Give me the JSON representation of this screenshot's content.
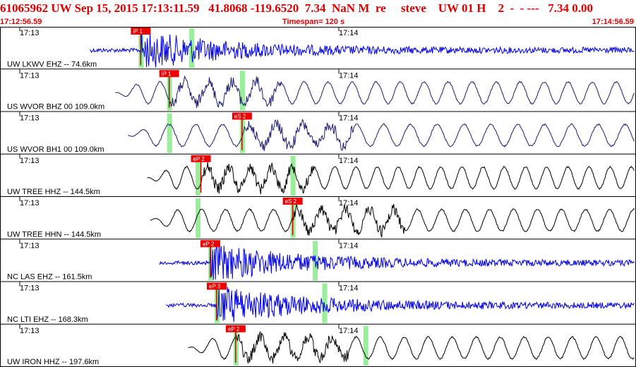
{
  "header": {
    "event_line": "61065962 UW Sep 15, 2015 17:13:11.59   41.8068 -119.6520  7.34  NaN M  re     steve    UW 01 H    2  -  - ---   7.34 0.00",
    "start_time": "17:12:56.59",
    "timespan": "Timespan= 120 s",
    "end_time": "17:14:56.59"
  },
  "minute_labels": [
    "17:13",
    "17:14"
  ],
  "colors": {
    "header_text": "#e00000",
    "blue_trace": "#0000ee",
    "navy_trace": "#1c1c6e",
    "black_trace": "#000000",
    "pick_box": "#ee0000",
    "pick_line": "#cc0000",
    "window_bar": "#99ee99"
  },
  "traces": [
    {
      "label": "UW LKWV EHZ -- 74.6km",
      "color": "#0000ee",
      "style": "noise",
      "pick": "iP 1",
      "start": 0.14,
      "pick_at": 0.22,
      "bars": [
        0.22,
        0.3
      ]
    },
    {
      "label": "US WVOR BHZ 00 109.0km",
      "color": "#1c1c6e",
      "style": "wave",
      "pick": "iP 1",
      "start": 0.18,
      "pick_at": 0.265,
      "bars": [
        0.265,
        0.38
      ]
    },
    {
      "label": "US WVOR BH1 00 109.0km",
      "color": "#1c1c6e",
      "style": "wave",
      "pick": "eS 2",
      "start": 0.2,
      "pick_at": 0.38,
      "bars": [
        0.265,
        0.38
      ]
    },
    {
      "label": "UW TREE HHZ -- 144.5km",
      "color": "#000000",
      "style": "wave",
      "pick": "eP 2",
      "start": 0.23,
      "pick_at": 0.315,
      "bars": [
        0.31,
        0.46
      ]
    },
    {
      "label": "UW TREE HHN -- 144.5km",
      "color": "#000000",
      "style": "wave",
      "pick": "eS 2",
      "start": 0.235,
      "pick_at": 0.46,
      "bars": [
        0.31,
        0.46
      ]
    },
    {
      "label": "NC LAS EHZ -- 161.5km",
      "color": "#0000ee",
      "style": "noise",
      "pick": "eP 2",
      "start": 0.25,
      "pick_at": 0.33,
      "bars": [
        0.33,
        0.495
      ]
    },
    {
      "label": "NC LTI EHZ -- 168.3km",
      "color": "#0000ee",
      "style": "noise",
      "pick": "eP 3",
      "start": 0.26,
      "pick_at": 0.34,
      "bars": [
        0.34,
        0.51
      ]
    },
    {
      "label": "UW IRON HHZ -- 197.6km",
      "color": "#000000",
      "style": "wave",
      "pick": "eP 2",
      "start": 0.295,
      "pick_at": 0.37,
      "bars": [
        0.37,
        0.575
      ]
    }
  ]
}
